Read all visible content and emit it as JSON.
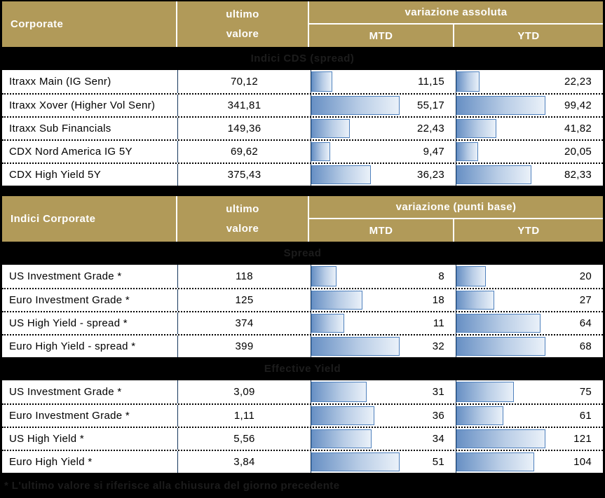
{
  "colors": {
    "background": "#000000",
    "header_gold": "#B19A59",
    "header_text": "#FFFFFF",
    "column_divider_navy": "#17375E",
    "bar_border": "#4F81BD",
    "bar_fill_start": "#6890C4",
    "bar_fill_end": "#EAF1F9",
    "band_text": "#1C1C1C"
  },
  "footnote": "* L'ultimo valore si riferisce alla chiusura del giorno precedente",
  "tables": [
    {
      "title": "Corporate",
      "last_value_label_line1": "ultimo",
      "last_value_label_line2": "valore",
      "variation_label": "variazione assoluta",
      "mtd_label": "MTD",
      "ytd_label": "YTD",
      "sections": [
        {
          "band_title": "Indici CDS (spread)",
          "rows": [
            {
              "name": "Itraxx Main (IG Senr)",
              "value": "70,12",
              "mtd": "11,15",
              "ytd": "22,23"
            },
            {
              "name": "Itraxx Xover (Higher Vol Senr)",
              "value": "341,81",
              "mtd": "55,17",
              "ytd": "99,42"
            },
            {
              "name": "Itraxx Sub Financials",
              "value": "149,36",
              "mtd": "22,43",
              "ytd": "41,82"
            },
            {
              "name": "CDX Nord America IG 5Y",
              "value": "69,62",
              "mtd": "9,47",
              "ytd": "20,05"
            },
            {
              "name": "CDX High Yield 5Y",
              "value": "375,43",
              "mtd": "36,23",
              "ytd": "82,33"
            }
          ]
        }
      ]
    },
    {
      "title": "Indici Corporate",
      "last_value_label_line1": "ultimo",
      "last_value_label_line2": "valore",
      "variation_label": "variazione (punti base)",
      "mtd_label": "MTD",
      "ytd_label": "YTD",
      "sections": [
        {
          "band_title": "Spread",
          "rows": [
            {
              "name": "US Investment Grade *",
              "value": "118",
              "mtd": "8",
              "ytd": "20"
            },
            {
              "name": "Euro Investment Grade *",
              "value": "125",
              "mtd": "18",
              "ytd": "27"
            },
            {
              "name": "US High Yield  - spread *",
              "value": "374",
              "mtd": "11",
              "ytd": "64"
            },
            {
              "name": "Euro High Yield  - spread *",
              "value": "399",
              "mtd": "32",
              "ytd": "68"
            }
          ]
        },
        {
          "band_title": "Effective Yield",
          "rows": [
            {
              "name": "US Investment Grade *",
              "value": "3,09",
              "mtd": "31",
              "ytd": "75"
            },
            {
              "name": "Euro Investment Grade *",
              "value": "1,11",
              "mtd": "36",
              "ytd": "61"
            },
            {
              "name": "US High Yield *",
              "value": "5,56",
              "mtd": "34",
              "ytd": "121"
            },
            {
              "name": "Euro High Yield *",
              "value": "3,84",
              "mtd": "51",
              "ytd": "104"
            }
          ]
        }
      ]
    }
  ],
  "chart_data": [
    {
      "type": "table",
      "title": "Corporate — Indici CDS (spread)",
      "columns": [
        "ultimo valore",
        "variazione assoluta MTD",
        "variazione assoluta YTD"
      ],
      "categories": [
        "Itraxx Main (IG Senr)",
        "Itraxx Xover (Higher Vol Senr)",
        "Itraxx Sub Financials",
        "CDX Nord America IG 5Y",
        "CDX High Yield 5Y"
      ],
      "series": [
        {
          "name": "ultimo valore",
          "values": [
            70.12,
            341.81,
            149.36,
            69.62,
            375.43
          ]
        },
        {
          "name": "MTD",
          "values": [
            11.15,
            55.17,
            22.43,
            9.47,
            36.23
          ]
        },
        {
          "name": "YTD",
          "values": [
            22.23,
            99.42,
            41.82,
            20.05,
            82.33
          ]
        }
      ],
      "layout_hints": "MTD and YTD cells contain left-anchored blue gradient data bars scaled to column max"
    },
    {
      "type": "table",
      "title": "Indici Corporate — Spread",
      "columns": [
        "ultimo valore",
        "variazione (punti base) MTD",
        "variazione (punti base) YTD"
      ],
      "categories": [
        "US Investment Grade *",
        "Euro Investment Grade *",
        "US High Yield  - spread *",
        "Euro High Yield  - spread *"
      ],
      "series": [
        {
          "name": "ultimo valore",
          "values": [
            118,
            125,
            374,
            399
          ]
        },
        {
          "name": "MTD",
          "values": [
            8,
            18,
            11,
            32
          ]
        },
        {
          "name": "YTD",
          "values": [
            20,
            27,
            64,
            68
          ]
        }
      ],
      "layout_hints": "MTD and YTD cells contain left-anchored blue gradient data bars scaled to column max"
    },
    {
      "type": "table",
      "title": "Indici Corporate — Effective Yield",
      "columns": [
        "ultimo valore",
        "variazione (punti base) MTD",
        "variazione (punti base) YTD"
      ],
      "categories": [
        "US Investment Grade *",
        "Euro Investment Grade *",
        "US High Yield *",
        "Euro High Yield *"
      ],
      "series": [
        {
          "name": "ultimo valore",
          "values": [
            3.09,
            1.11,
            5.56,
            3.84
          ]
        },
        {
          "name": "MTD",
          "values": [
            31,
            36,
            34,
            51
          ]
        },
        {
          "name": "YTD",
          "values": [
            75,
            61,
            121,
            104
          ]
        }
      ],
      "layout_hints": "MTD and YTD cells contain left-anchored blue gradient data bars scaled to column max"
    }
  ]
}
